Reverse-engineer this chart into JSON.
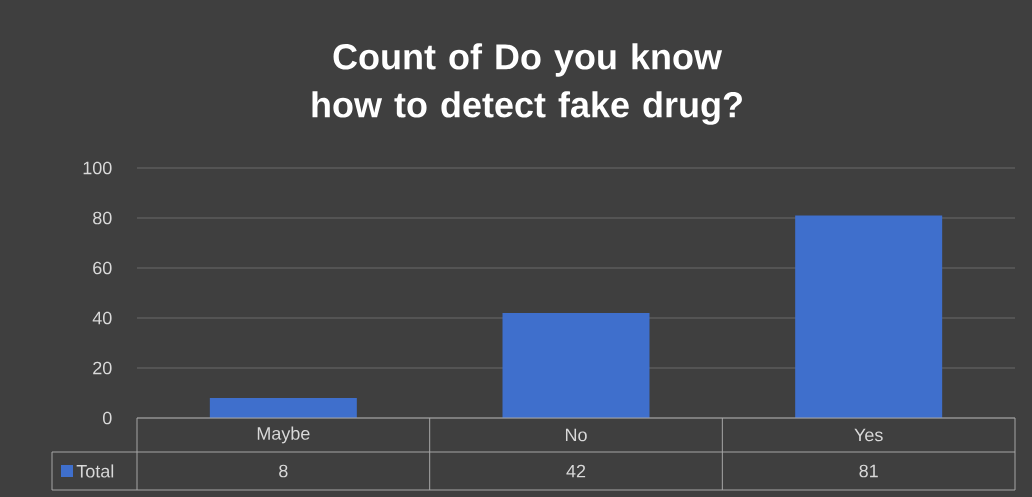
{
  "chart_data": {
    "type": "bar",
    "title": "Count of Do you know how to detect fake drug?",
    "categories": [
      "Maybe",
      "No",
      "Yes"
    ],
    "series": [
      {
        "name": "Total",
        "color": "#3f6fcc",
        "values": [
          8,
          42,
          81
        ]
      }
    ],
    "ylim": [
      0,
      100
    ],
    "yticks": [
      0,
      20,
      40,
      60,
      80,
      100
    ],
    "grid": "y",
    "data_labels": true,
    "legend": "bottom"
  }
}
